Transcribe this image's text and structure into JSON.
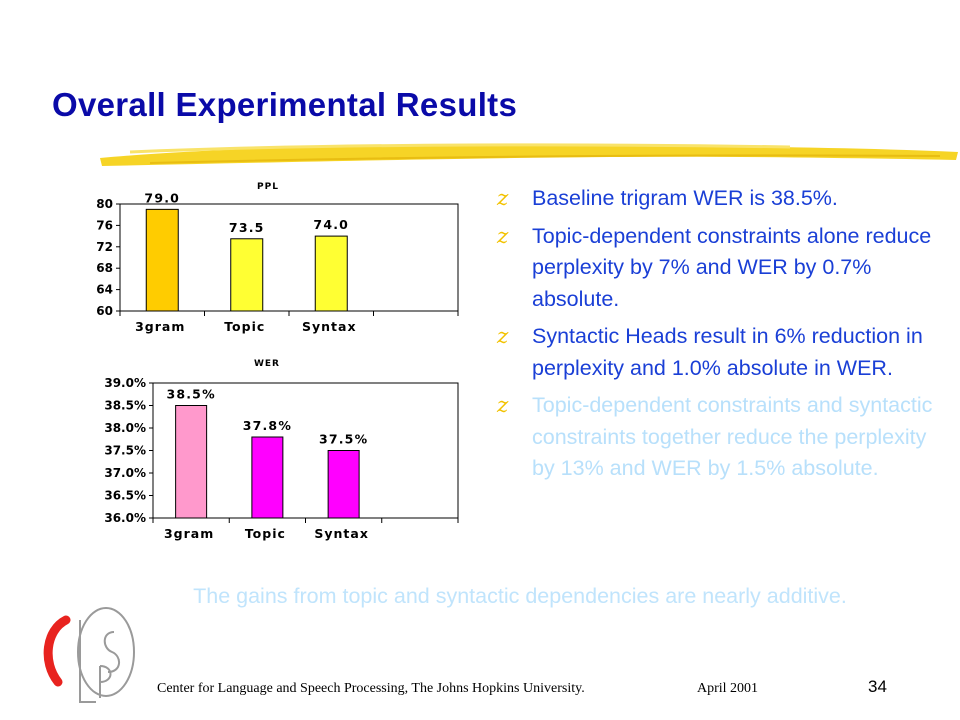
{
  "title": "Overall Experimental Results",
  "bullet_marker": "z",
  "bullets": [
    {
      "text": "Baseline trigram WER is 38.5%.",
      "color": "#1a3fd6"
    },
    {
      "text": "Topic-dependent constraints alone reduce perplexity by 7% and WER by 0.7% absolute.",
      "color": "#1a3fd6"
    },
    {
      "text": "Syntactic Heads result in 6% reduction in perplexity and 1.0% absolute in WER.",
      "color": "#1a3fd6"
    },
    {
      "text": "Topic-dependent constraints and syntactic constraints together reduce the perplexity by 13% and WER by 1.5% absolute.",
      "color": "#b8e0fb"
    }
  ],
  "summary": "The gains from topic and syntactic dependencies are nearly additive.",
  "summary_color": "#c0e4fc",
  "footer": "Center for Language and Speech Processing, The Johns Hopkins University.",
  "date": "April 2001",
  "page_number": "34",
  "colors": {
    "title": "#0a0aa8",
    "swoosh": "#f5d21a",
    "marker": "#f2c200"
  },
  "chart_data": [
    {
      "type": "bar",
      "title": "PPL",
      "categories": [
        "3gram",
        "Topic",
        "Syntax"
      ],
      "values": [
        79.0,
        73.5,
        74.0
      ],
      "value_labels": [
        "79.0",
        "73.5",
        "74.0"
      ],
      "ylim": [
        60,
        80
      ],
      "yticks": [
        60,
        64,
        68,
        72,
        76,
        80
      ],
      "ytick_labels": [
        "60",
        "64",
        "68",
        "72",
        "76",
        "80"
      ],
      "grid": false,
      "bar_colors": [
        "#ffcc00",
        "#ffff33",
        "#ffff33"
      ]
    },
    {
      "type": "bar",
      "title": "WER",
      "categories": [
        "3gram",
        "Topic",
        "Syntax"
      ],
      "values": [
        38.5,
        37.8,
        37.5
      ],
      "value_labels": [
        "38.5%",
        "37.8%",
        "37.5%"
      ],
      "ylim": [
        36.0,
        39.0
      ],
      "yticks": [
        36.0,
        36.5,
        37.0,
        37.5,
        38.0,
        38.5,
        39.0
      ],
      "ytick_labels": [
        "36.0%",
        "36.5%",
        "37.0%",
        "37.5%",
        "38.0%",
        "38.5%",
        "39.0%"
      ],
      "grid": false,
      "bar_colors": [
        "#ff99cc",
        "#ff00ff",
        "#ff00ff"
      ]
    }
  ]
}
